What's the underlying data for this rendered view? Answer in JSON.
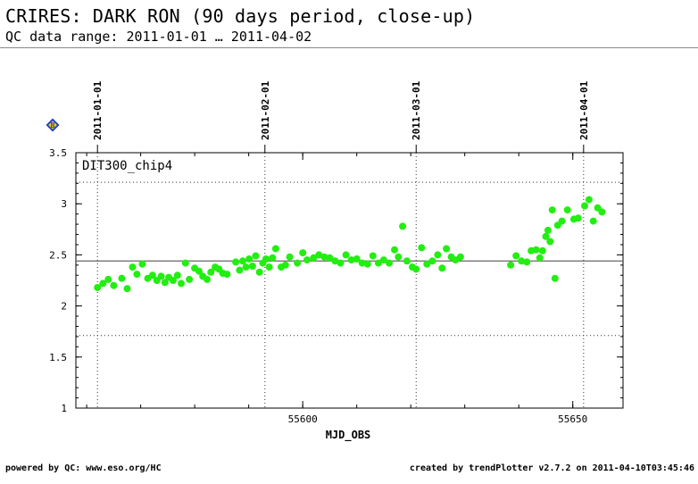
{
  "header": {
    "title": "CRIRES: DARK RON (90 days period, close-up)",
    "subtitle": "QC data range: 2011-01-01 … 2011-04-02"
  },
  "footer": {
    "left": "powered by QC: www.eso.org/HC",
    "right": "created by trendPlotter v2.7.2 on 2011-04-10T03:45:46"
  },
  "marker": {
    "icon": "blue-diamond-icon",
    "label": "B",
    "color": "#1f3fd0"
  },
  "colors": {
    "points": "#22ee11",
    "refline": "#666666",
    "frame": "#000000"
  },
  "chart_data": {
    "type": "scatter",
    "title": "",
    "panel_label": "DIT300_chip4",
    "xlabel": "MJD_OBS",
    "ylabel": "",
    "xlim": [
      55558.0,
      55659.3
    ],
    "ylim": [
      1.0,
      3.5
    ],
    "xticks": [
      55600,
      55650
    ],
    "yticks": [
      1,
      1.5,
      2,
      2.5,
      3,
      3.5
    ],
    "ytick_labels": [
      "1",
      "1.5",
      "2",
      "2.5",
      "3",
      "3.5"
    ],
    "xtick_labels": [
      "55600",
      "55650"
    ],
    "date_markers": [
      {
        "label": "2011-01-01",
        "mjd": 55562
      },
      {
        "label": "2011-02-01",
        "mjd": 55593
      },
      {
        "label": "2011-03-01",
        "mjd": 55621
      },
      {
        "label": "2011-04-01",
        "mjd": 55652
      }
    ],
    "reference_lines": {
      "mean": 2.44,
      "upper": 3.21,
      "lower": 1.71
    },
    "grid": false,
    "points": [
      [
        55562.0,
        2.18
      ],
      [
        55563.0,
        2.22
      ],
      [
        55564.0,
        2.26
      ],
      [
        55565.0,
        2.2
      ],
      [
        55566.5,
        2.27
      ],
      [
        55567.5,
        2.17
      ],
      [
        55568.5,
        2.38
      ],
      [
        55569.3,
        2.31
      ],
      [
        55570.3,
        2.41
      ],
      [
        55571.3,
        2.27
      ],
      [
        55572.2,
        2.3
      ],
      [
        55573.0,
        2.25
      ],
      [
        55573.8,
        2.29
      ],
      [
        55574.5,
        2.23
      ],
      [
        55575.2,
        2.28
      ],
      [
        55576.0,
        2.25
      ],
      [
        55576.8,
        2.3
      ],
      [
        55577.5,
        2.22
      ],
      [
        55578.3,
        2.42
      ],
      [
        55579.0,
        2.26
      ],
      [
        55580.0,
        2.37
      ],
      [
        55580.8,
        2.34
      ],
      [
        55581.5,
        2.29
      ],
      [
        55582.3,
        2.26
      ],
      [
        55583.0,
        2.33
      ],
      [
        55583.8,
        2.38
      ],
      [
        55584.5,
        2.36
      ],
      [
        55585.2,
        2.32
      ],
      [
        55586.0,
        2.31
      ],
      [
        55587.6,
        2.43
      ],
      [
        55588.3,
        2.35
      ],
      [
        55588.9,
        2.44
      ],
      [
        55589.5,
        2.38
      ],
      [
        55590.1,
        2.46
      ],
      [
        55590.7,
        2.39
      ],
      [
        55591.3,
        2.49
      ],
      [
        55592.0,
        2.33
      ],
      [
        55592.6,
        2.42
      ],
      [
        55593.2,
        2.46
      ],
      [
        55593.8,
        2.38
      ],
      [
        55594.4,
        2.47
      ],
      [
        55595.0,
        2.56
      ],
      [
        55596.0,
        2.38
      ],
      [
        55596.8,
        2.4
      ],
      [
        55597.6,
        2.48
      ],
      [
        55599.0,
        2.42
      ],
      [
        55600.0,
        2.52
      ],
      [
        55600.8,
        2.45
      ],
      [
        55602.0,
        2.47
      ],
      [
        55603.0,
        2.5
      ],
      [
        55604.0,
        2.48
      ],
      [
        55605.0,
        2.47
      ],
      [
        55606.0,
        2.44
      ],
      [
        55607.0,
        2.42
      ],
      [
        55608.0,
        2.5
      ],
      [
        55609.0,
        2.45
      ],
      [
        55610.0,
        2.46
      ],
      [
        55611.0,
        2.42
      ],
      [
        55612.0,
        2.41
      ],
      [
        55613.0,
        2.49
      ],
      [
        55614.0,
        2.42
      ],
      [
        55615.0,
        2.45
      ],
      [
        55616.0,
        2.42
      ],
      [
        55617.0,
        2.55
      ],
      [
        55617.7,
        2.48
      ],
      [
        55618.5,
        2.78
      ],
      [
        55619.3,
        2.44
      ],
      [
        55620.3,
        2.38
      ],
      [
        55621.0,
        2.36
      ],
      [
        55622.0,
        2.57
      ],
      [
        55623.0,
        2.41
      ],
      [
        55624.0,
        2.44
      ],
      [
        55625.0,
        2.5
      ],
      [
        55625.8,
        2.37
      ],
      [
        55626.6,
        2.56
      ],
      [
        55627.5,
        2.48
      ],
      [
        55628.3,
        2.45
      ],
      [
        55629.2,
        2.48
      ],
      [
        55638.5,
        2.4
      ],
      [
        55639.5,
        2.49
      ],
      [
        55640.5,
        2.44
      ],
      [
        55641.5,
        2.43
      ],
      [
        55642.3,
        2.54
      ],
      [
        55643.2,
        2.55
      ],
      [
        55643.9,
        2.47
      ],
      [
        55644.4,
        2.54
      ],
      [
        55645.0,
        2.68
      ],
      [
        55645.4,
        2.74
      ],
      [
        55645.8,
        2.63
      ],
      [
        55646.2,
        2.94
      ],
      [
        55646.7,
        2.27
      ],
      [
        55647.2,
        2.79
      ],
      [
        55648.0,
        2.83
      ],
      [
        55649.0,
        2.94
      ],
      [
        55650.2,
        2.85
      ],
      [
        55651.0,
        2.86
      ],
      [
        55652.2,
        2.98
      ],
      [
        55653.0,
        3.04
      ],
      [
        55653.8,
        2.83
      ],
      [
        55654.6,
        2.96
      ],
      [
        55655.4,
        2.92
      ]
    ]
  }
}
